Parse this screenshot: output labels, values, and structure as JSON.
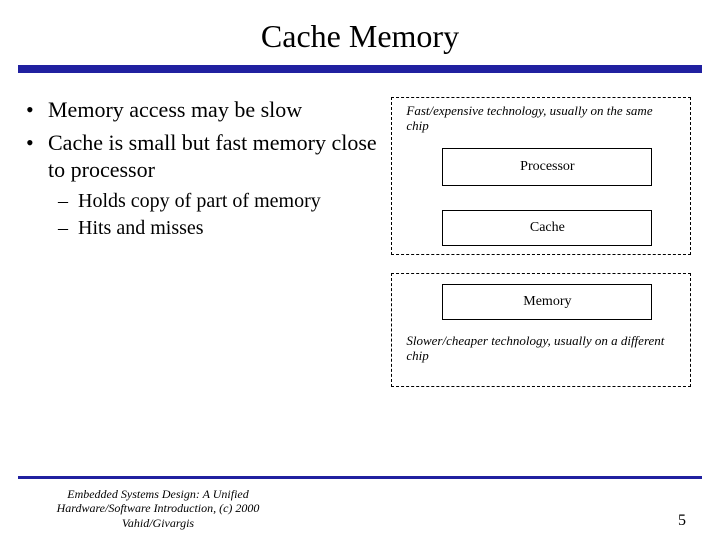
{
  "title": "Cache Memory",
  "bullets": {
    "b1": "Memory access may be slow",
    "b2": "Cache is small but fast memory close to processor",
    "sub1": "Holds copy of part of memory",
    "sub2": "Hits and misses"
  },
  "diagram": {
    "top_caption": "Fast/expensive technology, usually on the same chip",
    "processor_label": "Processor",
    "cache_label": "Cache",
    "memory_label": "Memory",
    "bottom_caption": "Slower/cheaper technology, usually on a different chip",
    "group_border_style": "dashed",
    "box_border_color": "#000000",
    "box_bg_color": "#ffffff",
    "caption_fontsize": 13,
    "label_fontsize": 14
  },
  "colors": {
    "rule": "#2020a0",
    "background": "#ffffff",
    "text": "#000000"
  },
  "footer": {
    "citation": "Embedded Systems Design: A Unified Hardware/Software Introduction, (c) 2000 Vahid/Givargis",
    "page": "5"
  }
}
